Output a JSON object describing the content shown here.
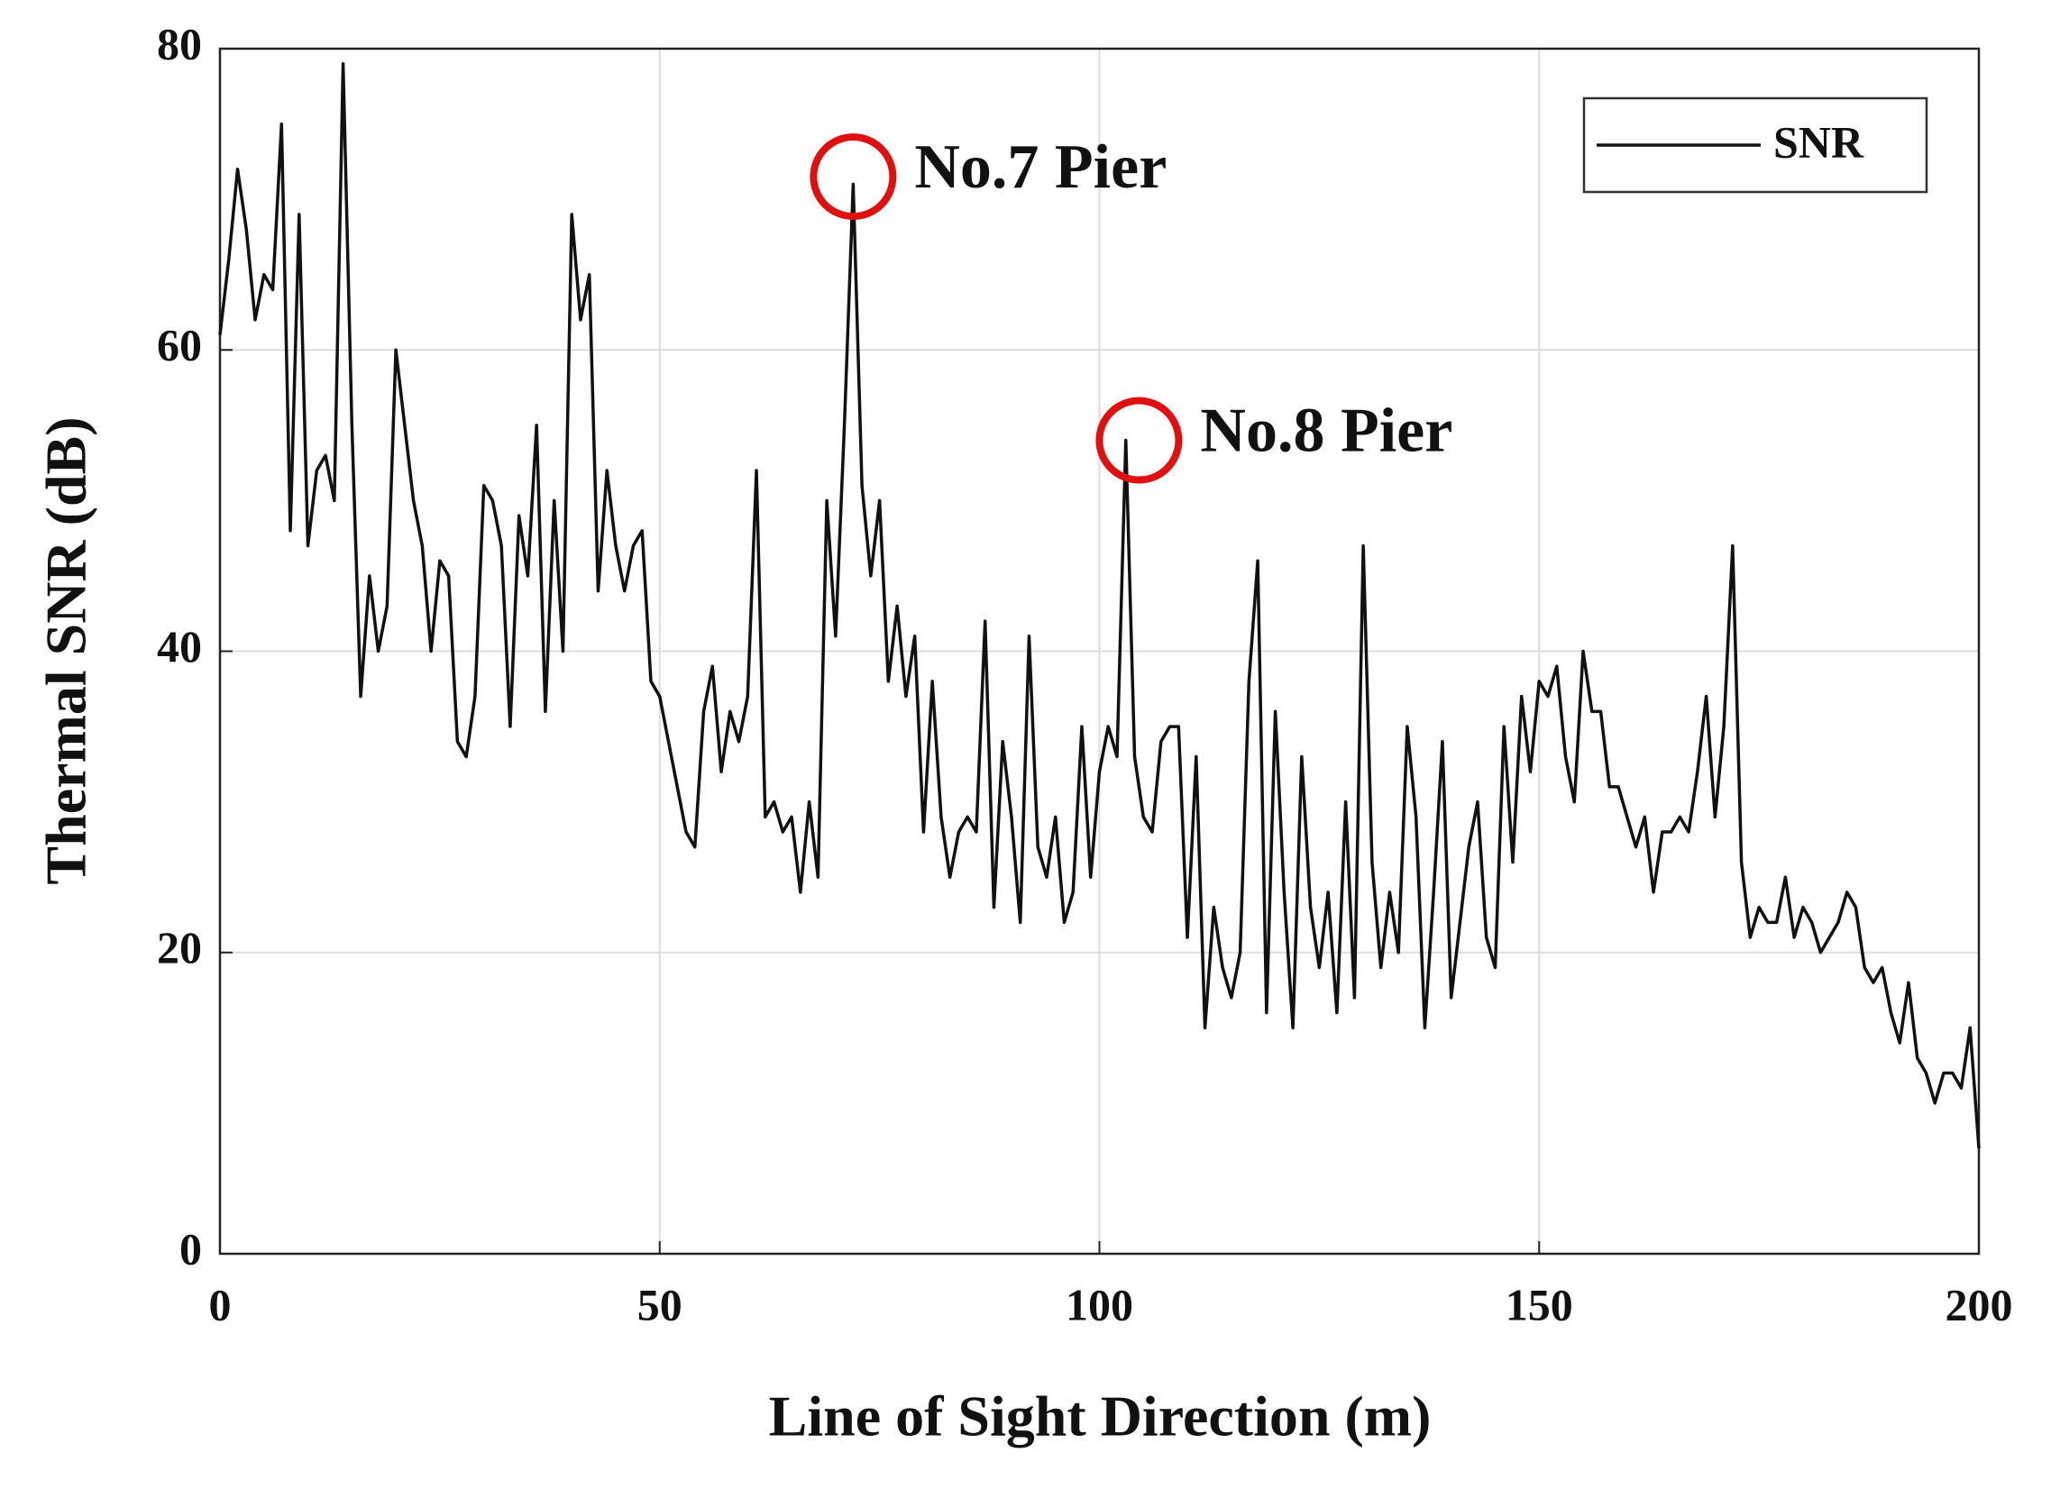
{
  "chart_data": {
    "type": "line",
    "xlabel": "Line of  Sight  Direction (m)",
    "ylabel": "Thermal SNR (dB)",
    "xlim": [
      0,
      200
    ],
    "ylim": [
      0,
      80
    ],
    "xticks": [
      0,
      50,
      100,
      150,
      200
    ],
    "yticks": [
      0,
      20,
      40,
      60,
      80
    ],
    "grid": true,
    "legend": "upper right",
    "x": [
      0,
      1,
      2,
      3,
      4,
      5,
      6,
      7,
      8,
      9,
      10,
      11,
      12,
      13,
      14,
      15,
      16,
      17,
      18,
      19,
      20,
      21,
      22,
      23,
      24,
      25,
      26,
      27,
      28,
      29,
      30,
      31,
      32,
      33,
      34,
      35,
      36,
      37,
      38,
      39,
      40,
      41,
      42,
      43,
      44,
      45,
      46,
      47,
      48,
      49,
      50,
      51,
      52,
      53,
      54,
      55,
      56,
      57,
      58,
      59,
      60,
      61,
      62,
      63,
      64,
      65,
      66,
      67,
      68,
      69,
      70,
      71,
      72,
      73,
      74,
      75,
      76,
      77,
      78,
      79,
      80,
      81,
      82,
      83,
      84,
      85,
      86,
      87,
      88,
      89,
      90,
      91,
      92,
      93,
      94,
      95,
      96,
      97,
      98,
      99,
      100,
      101,
      102,
      103,
      104,
      105,
      106,
      107,
      108,
      109,
      110,
      111,
      112,
      113,
      114,
      115,
      116,
      117,
      118,
      119,
      120,
      121,
      122,
      123,
      124,
      125,
      126,
      127,
      128,
      129,
      130,
      131,
      132,
      133,
      134,
      135,
      136,
      137,
      138,
      139,
      140,
      141,
      142,
      143,
      144,
      145,
      146,
      147,
      148,
      149,
      150,
      151,
      152,
      153,
      154,
      155,
      156,
      157,
      158,
      159,
      160,
      161,
      162,
      163,
      164,
      165,
      166,
      167,
      168,
      169,
      170,
      171,
      172,
      173,
      174,
      175,
      176,
      177,
      178,
      179,
      180,
      181,
      182,
      183,
      184,
      185,
      186,
      187,
      188,
      189,
      190,
      191,
      192,
      193,
      194,
      195,
      196,
      197,
      198,
      199,
      200
    ],
    "series": [
      {
        "name": "SNR",
        "color": "#111111",
        "values": [
          61,
          66,
          72,
          68,
          62,
          65,
          64,
          75,
          48,
          69,
          47,
          52,
          53,
          50,
          79,
          55,
          37,
          45,
          40,
          43,
          60,
          55,
          50,
          47,
          40,
          46,
          45,
          34,
          33,
          37,
          51,
          50,
          47,
          35,
          49,
          45,
          55,
          36,
          50,
          40,
          69,
          62,
          65,
          44,
          52,
          47,
          44,
          47,
          48,
          38,
          37,
          34,
          31,
          28,
          27,
          36,
          39,
          32,
          36,
          34,
          37,
          52,
          29,
          30,
          28,
          29,
          24,
          30,
          25,
          50,
          41,
          55,
          71,
          51,
          45,
          50,
          38,
          43,
          37,
          41,
          28,
          38,
          29,
          25,
          28,
          29,
          28,
          42,
          23,
          34,
          29,
          22,
          41,
          27,
          25,
          29,
          22,
          24,
          35,
          25,
          32,
          35,
          33,
          54,
          33,
          29,
          28,
          34,
          35,
          35,
          21,
          33,
          15,
          23,
          19,
          17,
          20,
          38,
          46,
          16,
          36,
          24,
          15,
          33,
          23,
          19,
          24,
          16,
          30,
          17,
          47,
          26,
          19,
          24,
          20,
          35,
          29,
          15,
          24,
          34,
          17,
          22,
          27,
          30,
          21,
          19,
          35,
          26,
          37,
          32,
          38,
          37,
          39,
          33,
          30,
          40,
          36,
          36,
          31,
          31,
          29,
          27,
          29,
          24,
          28,
          28,
          29,
          28,
          32,
          37,
          29,
          35,
          47,
          26,
          21,
          23,
          22,
          22,
          25,
          21,
          23,
          22,
          20,
          21,
          22,
          24,
          23,
          19,
          18,
          19,
          16,
          14,
          18,
          13,
          12,
          10,
          12,
          12,
          11,
          15,
          7
        ]
      }
    ],
    "annotations": [
      {
        "text": "No.7 Pier",
        "x": 72,
        "y": 71.5,
        "color": "#e01010"
      },
      {
        "text": "No.8 Pier",
        "x": 104.5,
        "y": 54,
        "color": "#e01010"
      }
    ]
  }
}
